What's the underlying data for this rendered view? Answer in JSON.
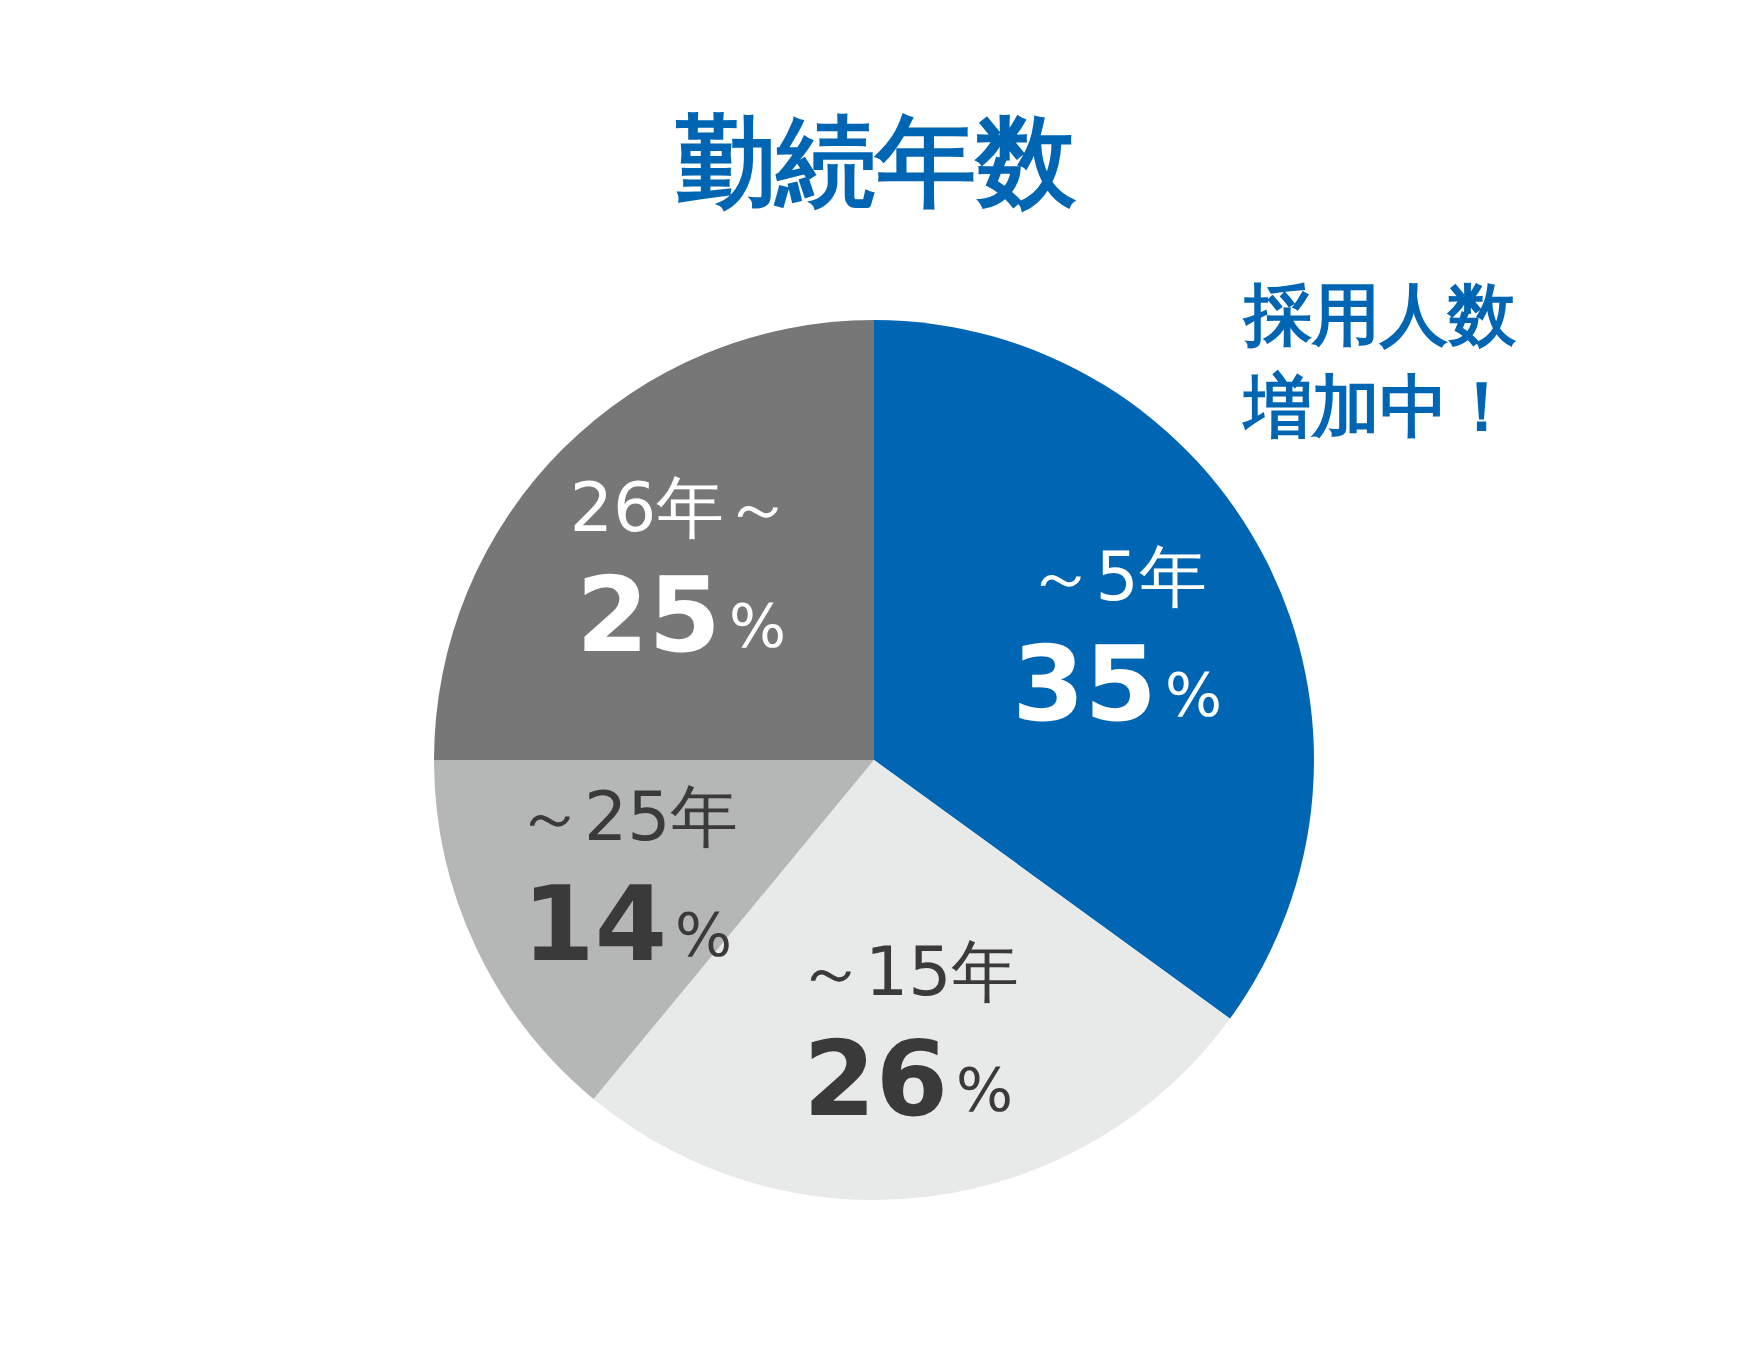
{
  "chart_data": {
    "type": "pie",
    "title": "勤続年数",
    "categories": [
      "～5年",
      "～15年",
      "～25年",
      "26年～"
    ],
    "values": [
      35,
      26,
      14,
      25
    ],
    "value_labels": [
      "35%",
      "26%",
      "14%",
      "25%"
    ],
    "colors": [
      "#0066b3",
      "#e8e9e9",
      "#b5b6b6",
      "#777777"
    ],
    "legend": false,
    "annotations": [
      "採用人数増加中！"
    ]
  }
}
